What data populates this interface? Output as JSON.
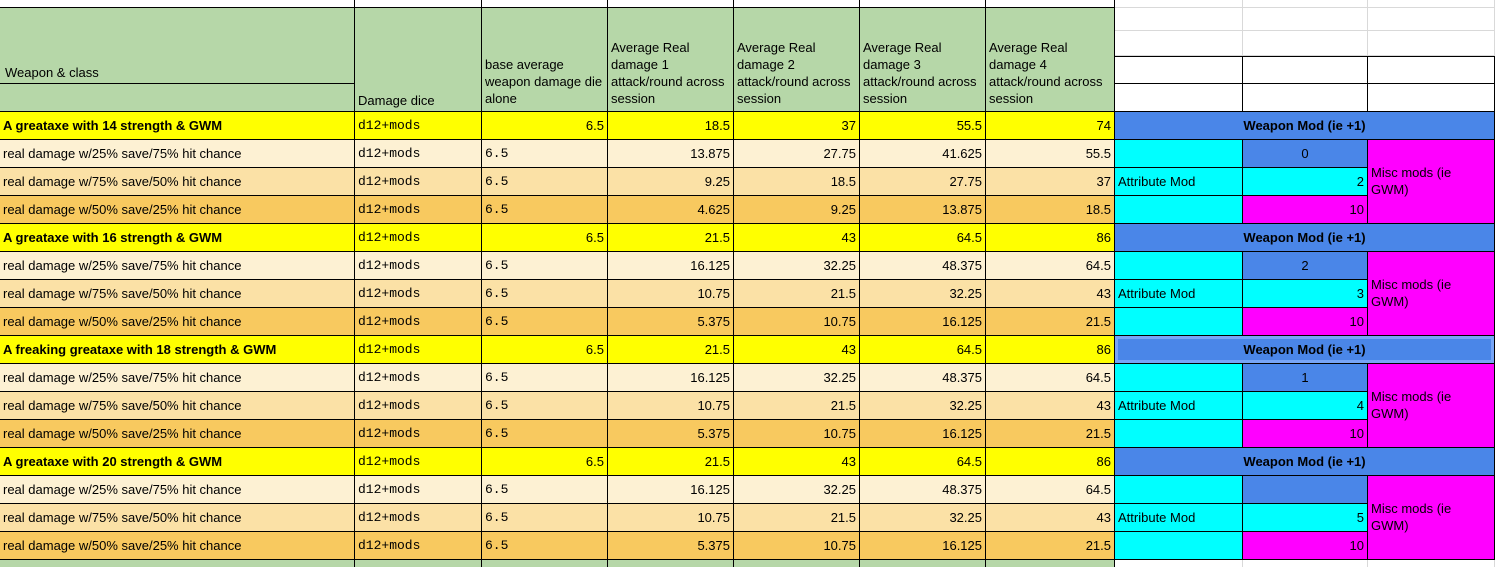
{
  "sheet": {
    "headers": {
      "weapon_class": "Weapon & class",
      "damage_dice": "Damage dice",
      "base_avg": "base average weapon damage die alone",
      "avg_cols": [
        "Average Real damage 1 attack/round across session",
        "Average Real damage 2 attack/round across session",
        "Average Real damage 3 attack/round across session",
        "Average Real damage 4 attack/round across session"
      ]
    },
    "row_labels": [
      "real damage w/25% save/75% hit chance",
      "real damage w/75% save/50% hit chance",
      "real damage w/50% save/25% hit chance"
    ],
    "mods": {
      "weapon_mod_label": "Weapon Mod (ie +1)",
      "attribute_mod_label": "Attribute Mod",
      "misc_mods_label": "Misc mods (ie GWM)"
    },
    "groups": [
      {
        "title": "A greataxe with 14 strength & GWM",
        "dice": "d12+mods",
        "base": "6.5",
        "totals": [
          "18.5",
          "37",
          "55.5",
          "74"
        ],
        "sub_rows": [
          [
            "13.875",
            "27.75",
            "41.625",
            "55.5"
          ],
          [
            "9.25",
            "18.5",
            "27.75",
            "37"
          ],
          [
            "4.625",
            "9.25",
            "13.875",
            "18.5"
          ]
        ],
        "weapon_mod": "0",
        "attribute_mod": "2",
        "misc_mod": "10",
        "selected": false
      },
      {
        "title": "A greataxe with 16 strength & GWM",
        "dice": "d12+mods",
        "base": "6.5",
        "totals": [
          "21.5",
          "43",
          "64.5",
          "86"
        ],
        "sub_rows": [
          [
            "16.125",
            "32.25",
            "48.375",
            "64.5"
          ],
          [
            "10.75",
            "21.5",
            "32.25",
            "43"
          ],
          [
            "5.375",
            "10.75",
            "16.125",
            "21.5"
          ]
        ],
        "weapon_mod": "2",
        "attribute_mod": "3",
        "misc_mod": "10",
        "selected": false
      },
      {
        "title": "A freaking greataxe with 18 strength & GWM",
        "dice": "d12+mods",
        "base": "6.5",
        "totals": [
          "21.5",
          "43",
          "64.5",
          "86"
        ],
        "sub_rows": [
          [
            "16.125",
            "32.25",
            "48.375",
            "64.5"
          ],
          [
            "10.75",
            "21.5",
            "32.25",
            "43"
          ],
          [
            "5.375",
            "10.75",
            "16.125",
            "21.5"
          ]
        ],
        "weapon_mod": "1",
        "attribute_mod": "4",
        "misc_mod": "10",
        "selected": true
      },
      {
        "title": "A greataxe with 20 strength & GWM",
        "dice": "d12+mods",
        "base": "6.5",
        "totals": [
          "21.5",
          "43",
          "64.5",
          "86"
        ],
        "sub_rows": [
          [
            "16.125",
            "32.25",
            "48.375",
            "64.5"
          ],
          [
            "10.75",
            "21.5",
            "32.25",
            "43"
          ],
          [
            "5.375",
            "10.75",
            "16.125",
            "21.5"
          ]
        ],
        "weapon_mod": "",
        "attribute_mod": "5",
        "misc_mod": "10",
        "selected": false
      }
    ],
    "colors": {
      "header_green": "#b6d7a8",
      "group_yellow": "#ffff00",
      "sub_row_1": "#fdf1d3",
      "sub_row_2": "#fbe1a6",
      "sub_row_3": "#f8c95f",
      "mod_blue": "#4a86e8",
      "mod_cyan": "#00ffff",
      "mod_magenta": "#ff00ff",
      "gridline": "#d9d9d9",
      "selection_blue": "#77a5f7"
    }
  }
}
